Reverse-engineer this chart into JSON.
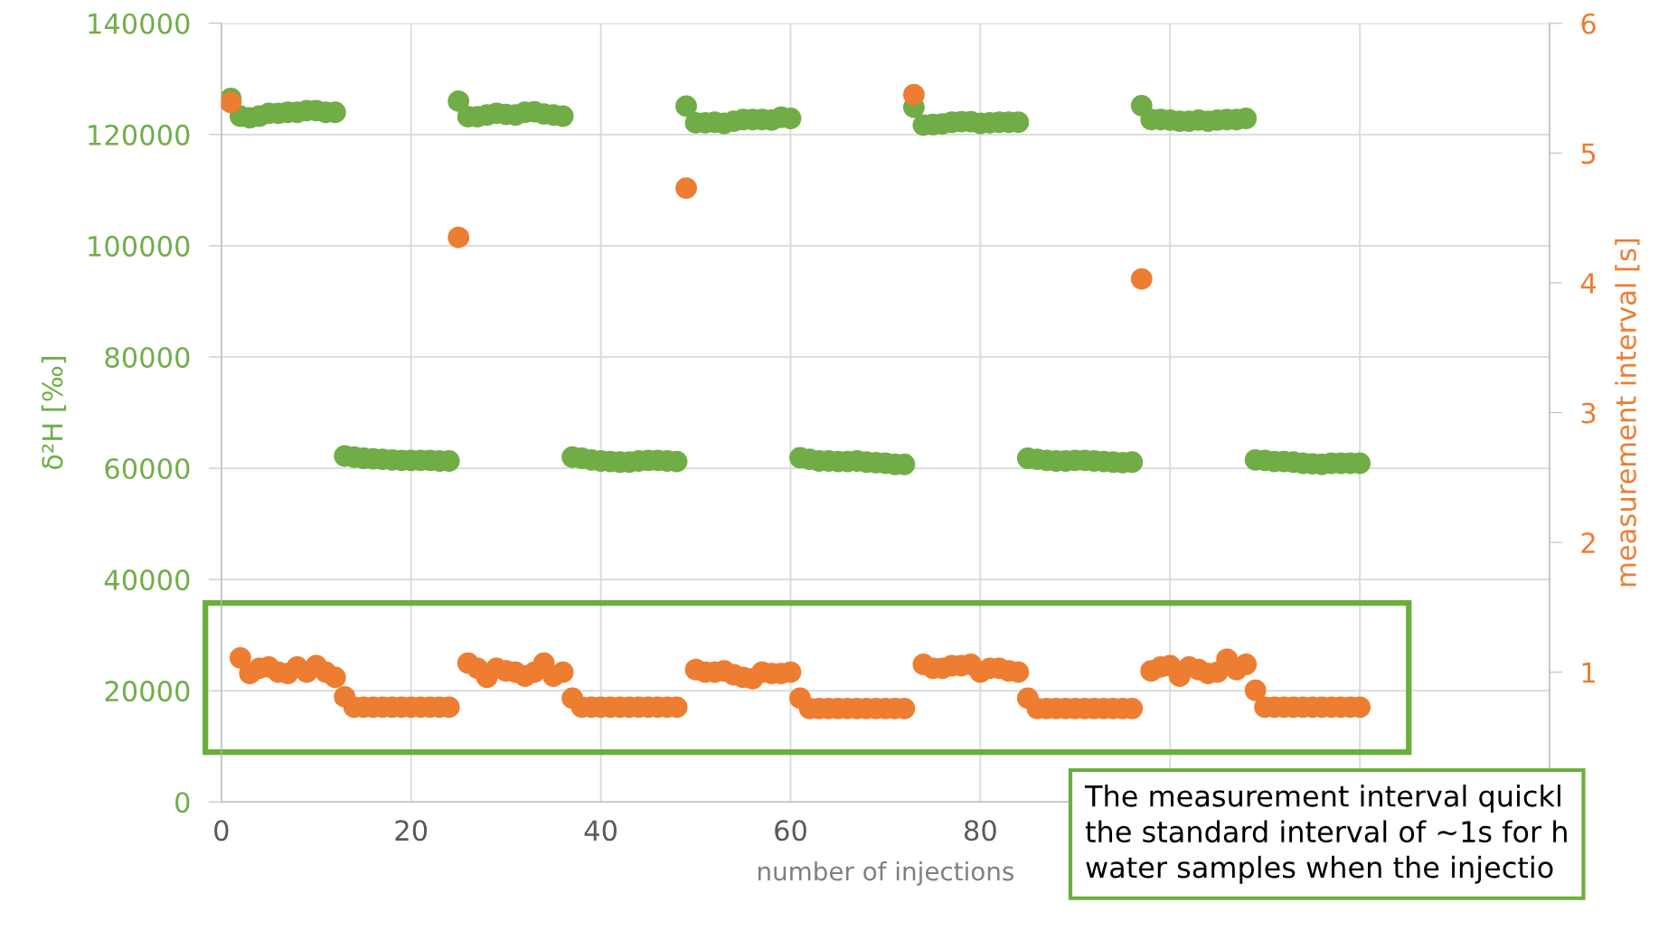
{
  "chart_data": {
    "type": "scatter",
    "xlabel": "number of injections",
    "ylabel": "δ²H [‰]",
    "y2label": "measurement interval [s]",
    "xlim": [
      0,
      140
    ],
    "xticks": [
      0,
      20,
      40,
      60,
      80,
      {
        "value": 100,
        "label": null
      },
      {
        "value": 120,
        "label": null
      },
      {
        "value": 140,
        "label": null
      }
    ],
    "ylim": [
      0,
      140000
    ],
    "yticks": [
      0,
      20000,
      40000,
      60000,
      80000,
      100000,
      120000,
      140000
    ],
    "y2lim": [
      0,
      6
    ],
    "y2ticks": [
      {
        "value": 0,
        "label": null
      },
      1,
      2,
      3,
      4,
      5,
      6
    ],
    "grid": true,
    "marker": "circle",
    "x": [
      1,
      2,
      3,
      4,
      5,
      6,
      7,
      8,
      9,
      10,
      11,
      12,
      13,
      14,
      15,
      16,
      17,
      18,
      19,
      20,
      21,
      22,
      23,
      24,
      25,
      26,
      27,
      28,
      29,
      30,
      31,
      32,
      33,
      34,
      35,
      36,
      37,
      38,
      39,
      40,
      41,
      42,
      43,
      44,
      45,
      46,
      47,
      48,
      49,
      50,
      51,
      52,
      53,
      54,
      55,
      56,
      57,
      58,
      59,
      60,
      61,
      62,
      63,
      64,
      65,
      66,
      67,
      68,
      69,
      70,
      71,
      72,
      73,
      74,
      75,
      76,
      77,
      78,
      79,
      80,
      81,
      82,
      83,
      84,
      85,
      86,
      87,
      88,
      89,
      90,
      91,
      92,
      93,
      94,
      95,
      96,
      97,
      98,
      99,
      100,
      101,
      102,
      103,
      104,
      105,
      106,
      107,
      108,
      109,
      110,
      111,
      112,
      113,
      114,
      115,
      116,
      117,
      118,
      119,
      120
    ],
    "series": [
      {
        "color": "#70ad47",
        "values": [
          126500,
          123300,
          123000,
          123300,
          123800,
          123800,
          124000,
          124000,
          124300,
          124300,
          124000,
          124000,
          62200,
          62000,
          61800,
          61700,
          61600,
          61500,
          61400,
          61400,
          61400,
          61400,
          61300,
          61300,
          126000,
          123200,
          123200,
          123500,
          123800,
          123600,
          123500,
          124000,
          124100,
          123700,
          123500,
          123300,
          62000,
          61800,
          61500,
          61300,
          61200,
          61100,
          61100,
          61300,
          61400,
          61400,
          61300,
          61200,
          125100,
          122100,
          122100,
          122200,
          122000,
          122400,
          122700,
          122700,
          122700,
          122600,
          123100,
          122900,
          61900,
          61600,
          61300,
          61300,
          61200,
          61200,
          61300,
          61100,
          61000,
          60900,
          60700,
          60700,
          124900,
          121700,
          121800,
          121900,
          122200,
          122300,
          122300,
          122000,
          122100,
          122200,
          122200,
          122200,
          61800,
          61600,
          61400,
          61300,
          61300,
          61400,
          61400,
          61300,
          61200,
          61100,
          61000,
          61100,
          125200,
          122700,
          122700,
          122600,
          122400,
          122400,
          122600,
          122400,
          122600,
          122700,
          122700,
          122900,
          61500,
          61400,
          61200,
          61200,
          61100,
          60900,
          60800,
          60700,
          60900,
          60900,
          60900,
          60900
        ]
      },
      {
        "color": "#ed7d31",
        "axis": "y2",
        "values": [
          5.39,
          1.11,
          0.99,
          1.03,
          1.04,
          1.0,
          0.99,
          1.04,
          1.0,
          1.05,
          1.0,
          0.96,
          0.81,
          0.73,
          0.73,
          0.73,
          0.73,
          0.73,
          0.73,
          0.73,
          0.73,
          0.73,
          0.73,
          0.73,
          4.35,
          1.07,
          1.03,
          0.96,
          1.03,
          1.01,
          1.0,
          0.97,
          1.0,
          1.07,
          0.97,
          1.0,
          0.8,
          0.73,
          0.73,
          0.73,
          0.73,
          0.73,
          0.73,
          0.73,
          0.73,
          0.73,
          0.73,
          0.73,
          4.73,
          1.02,
          1.0,
          1.0,
          1.01,
          0.98,
          0.96,
          0.95,
          1.0,
          0.99,
          0.99,
          1.0,
          0.8,
          0.72,
          0.72,
          0.72,
          0.72,
          0.72,
          0.72,
          0.72,
          0.72,
          0.72,
          0.72,
          0.72,
          5.45,
          1.06,
          1.03,
          1.03,
          1.05,
          1.05,
          1.06,
          1.0,
          1.03,
          1.03,
          1.01,
          1.0,
          0.8,
          0.72,
          0.72,
          0.72,
          0.72,
          0.72,
          0.72,
          0.72,
          0.72,
          0.72,
          0.72,
          0.72,
          4.03,
          1.01,
          1.04,
          1.05,
          0.97,
          1.04,
          1.02,
          0.99,
          1.0,
          1.1,
          1.02,
          1.06,
          0.86,
          0.73,
          0.73,
          0.73,
          0.73,
          0.73,
          0.73,
          0.73,
          0.73,
          0.73,
          0.73,
          0.73
        ]
      }
    ],
    "annotations": [
      "The measurement interval quickl\nthe standard interval of ~1s for h\nwater samples when the injectio"
    ]
  }
}
